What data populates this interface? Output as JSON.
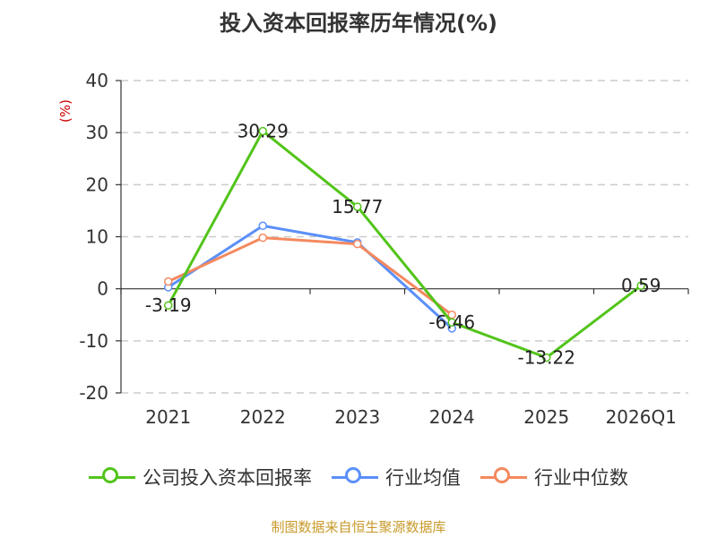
{
  "chart_data": {
    "type": "line",
    "title": "投入资本回报率历年情况(%)",
    "ylabel": "(%)",
    "categories": [
      "2021",
      "2022",
      "2023",
      "2024",
      "2025",
      "2026Q1"
    ],
    "ylim": [
      -20,
      40
    ],
    "yticks": [
      "40",
      "30",
      "20",
      "10",
      "0",
      "-10",
      "-20"
    ],
    "grid": true,
    "legend_position": "bottom",
    "series": [
      {
        "name": "公司投入资本回报率",
        "color": "#52c41a",
        "values": [
          -3.19,
          30.29,
          15.77,
          -6.46,
          -13.22,
          0.59
        ],
        "labels": [
          "-3.19",
          "30.29",
          "15.77",
          "-6.46",
          "-13.22",
          "0.59"
        ]
      },
      {
        "name": "行业均值",
        "color": "#5b8ff9",
        "values": [
          0.3,
          12.1,
          8.9,
          -7.6,
          null,
          null
        ]
      },
      {
        "name": "行业中位数",
        "color": "#f4895f",
        "values": [
          1.4,
          9.8,
          8.6,
          -5.0,
          null,
          null
        ]
      }
    ]
  },
  "footer": {
    "source": "制图数据来自恒生聚源数据库"
  }
}
